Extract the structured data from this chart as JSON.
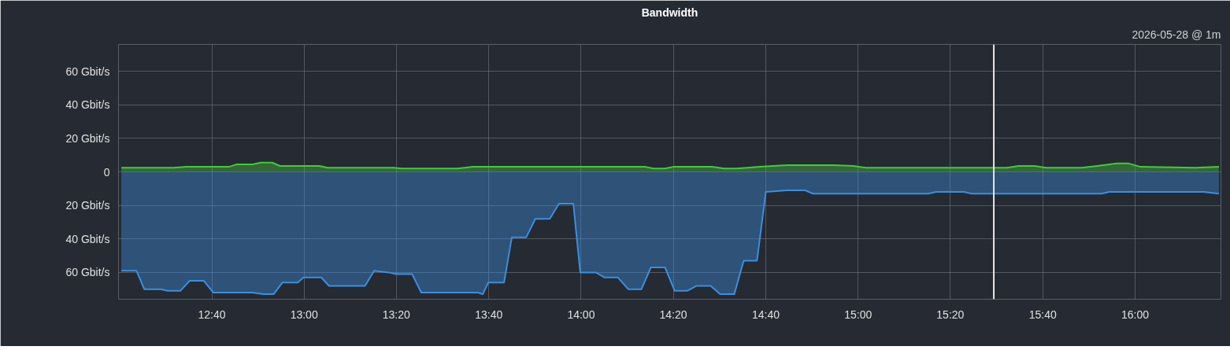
{
  "chart_data": {
    "type": "area",
    "title": "Bandwidth",
    "annotations": [
      "2026-05-28 @ 1m"
    ],
    "xlim": [
      12.33,
      16.31
    ],
    "ylim": [
      -76,
      76
    ],
    "xticks": [
      {
        "value": 12.667,
        "label": "12:40"
      },
      {
        "value": 13,
        "label": "13:00"
      },
      {
        "value": 13.333,
        "label": "13:20"
      },
      {
        "value": 13.667,
        "label": "13:40"
      },
      {
        "value": 14,
        "label": "14:00"
      },
      {
        "value": 14.333,
        "label": "14:20"
      },
      {
        "value": 14.667,
        "label": "14:40"
      },
      {
        "value": 15,
        "label": "15:00"
      },
      {
        "value": 15.333,
        "label": "15:20"
      },
      {
        "value": 15.667,
        "label": "15:40"
      },
      {
        "value": 16,
        "label": "16:00"
      }
    ],
    "yticks": [
      {
        "value": 60,
        "label": "60 Gbit/s"
      },
      {
        "value": 40,
        "label": "40 Gbit/s"
      },
      {
        "value": 20,
        "label": "20 Gbit/s"
      },
      0,
      {
        "value": -20,
        "label": "20 Gbit/s"
      },
      {
        "value": -40,
        "label": "40 Gbit/s"
      },
      {
        "value": -60,
        "label": "60 Gbit/s"
      }
    ],
    "grid": true,
    "ref_lines": [
      {
        "axis": "x",
        "value": 15.49,
        "color": "#e6e6e6"
      }
    ],
    "series": [
      {
        "color": "#46c93a",
        "x": [
          12.34,
          12.53,
          12.573,
          12.729,
          12.757,
          12.814,
          12.843,
          12.885,
          12.913,
          13.055,
          13.084,
          13.325,
          13.353,
          13.552,
          13.58,
          13.608,
          14.233,
          14.261,
          14.303,
          14.332,
          14.474,
          14.516,
          14.559,
          14.601,
          14.644,
          14.743,
          14.913,
          14.984,
          15.027,
          15.538,
          15.58,
          15.637,
          15.679,
          15.807,
          15.863,
          15.935,
          15.977,
          16.02,
          16.218,
          16.303
        ],
        "values": [
          2.5,
          2.5,
          3,
          3,
          4.5,
          4.5,
          5.5,
          5.5,
          3.5,
          3.5,
          2.5,
          2.5,
          2,
          2,
          2.5,
          3,
          3,
          2,
          2,
          3,
          3,
          2,
          2,
          2.5,
          3,
          4,
          4,
          3.5,
          2.5,
          2.5,
          3.5,
          3.5,
          2.5,
          2.5,
          3.5,
          5,
          5,
          3,
          2.5,
          3
        ]
      },
      {
        "color": "#3b8fe0",
        "x": [
          12.34,
          12.395,
          12.423,
          12.482,
          12.508,
          12.553,
          12.587,
          12.638,
          12.672,
          12.815,
          12.852,
          12.89,
          12.922,
          12.977,
          12.998,
          13.062,
          13.09,
          13.22,
          13.253,
          13.305,
          13.333,
          13.39,
          13.423,
          13.628,
          13.645,
          13.665,
          13.722,
          13.75,
          13.802,
          13.835,
          13.887,
          13.92,
          13.972,
          13.997,
          14.053,
          14.085,
          14.133,
          14.17,
          14.218,
          14.252,
          14.303,
          14.338,
          14.383,
          14.417,
          14.468,
          14.502,
          14.553,
          14.587,
          14.635,
          14.667,
          14.743,
          14.808,
          14.837,
          15.253,
          15.282,
          15.382,
          15.41,
          15.878,
          15.907,
          16.247,
          16.303
        ],
        "values": [
          -59,
          -59,
          -70,
          -70,
          -71,
          -71,
          -65,
          -65,
          -72,
          -72,
          -73,
          -73,
          -66,
          -66,
          -63,
          -63,
          -68,
          -68,
          -59,
          -60,
          -61,
          -61,
          -72,
          -72,
          -73,
          -66,
          -66,
          -39,
          -39,
          -28,
          -28,
          -19,
          -19,
          -60,
          -60,
          -63,
          -63,
          -70,
          -70,
          -57,
          -57,
          -71,
          -71,
          -68,
          -68,
          -73,
          -73,
          -53,
          -53,
          -12,
          -11,
          -11,
          -13,
          -13,
          -12,
          -12,
          -13,
          -13,
          -12,
          -12,
          -13
        ]
      }
    ]
  }
}
